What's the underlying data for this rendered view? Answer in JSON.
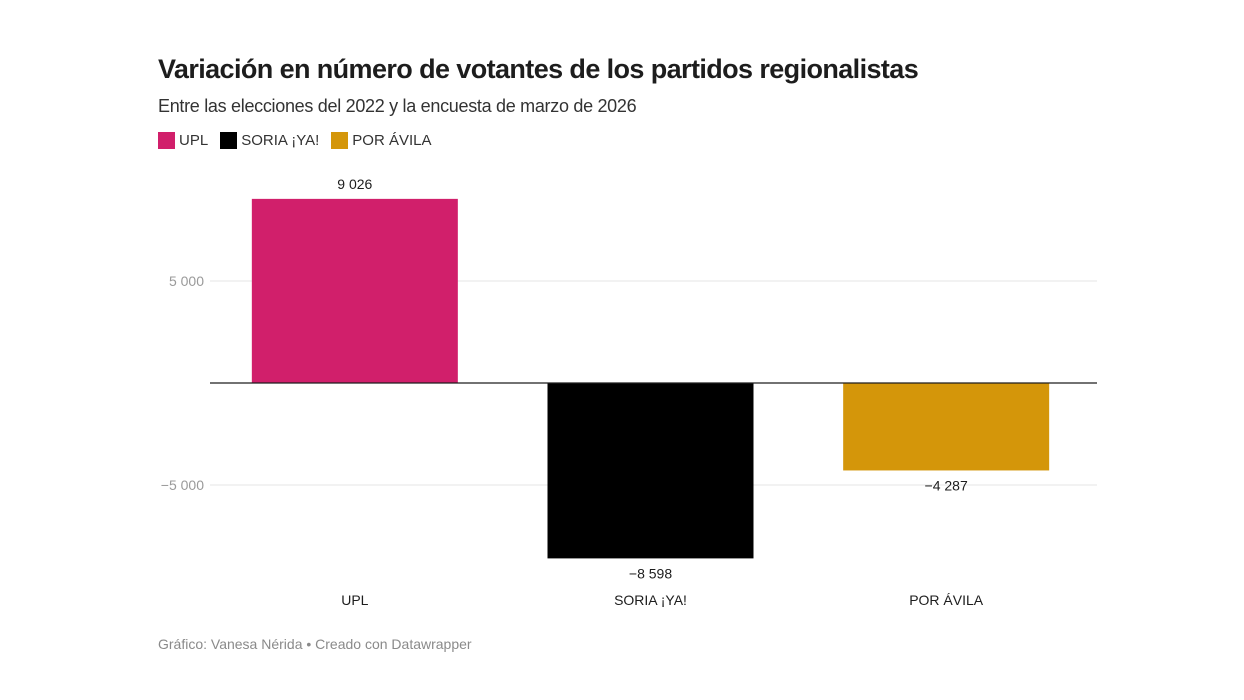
{
  "chart_data": {
    "type": "bar",
    "title": "Variación en número de votantes de los partidos regionalistas",
    "subtitle": "Entre las elecciones del 2022 y la encuesta de marzo de 2026",
    "categories": [
      "UPL",
      "SORIA ¡YA!",
      "POR ÁVILA"
    ],
    "values": [
      9026,
      -8598,
      -4287
    ],
    "value_labels": [
      "9 026",
      "−8 598",
      "−4 287"
    ],
    "colors": [
      "#d11f6b",
      "#000000",
      "#d4960a"
    ],
    "legend": [
      {
        "label": "UPL",
        "color": "#d11f6b"
      },
      {
        "label": "SORIA ¡YA!",
        "color": "#000000"
      },
      {
        "label": "POR ÁVILA",
        "color": "#d4960a"
      }
    ],
    "legend_position": "top-left",
    "yticks": [
      5000,
      -5000
    ],
    "ytick_labels": [
      "5 000",
      "−5 000"
    ],
    "ylim": [
      -9400,
      9026
    ],
    "grid": true,
    "xlabel": "",
    "ylabel": ""
  },
  "footer": "Gráfico: Vanesa Nérida • Creado con Datawrapper"
}
